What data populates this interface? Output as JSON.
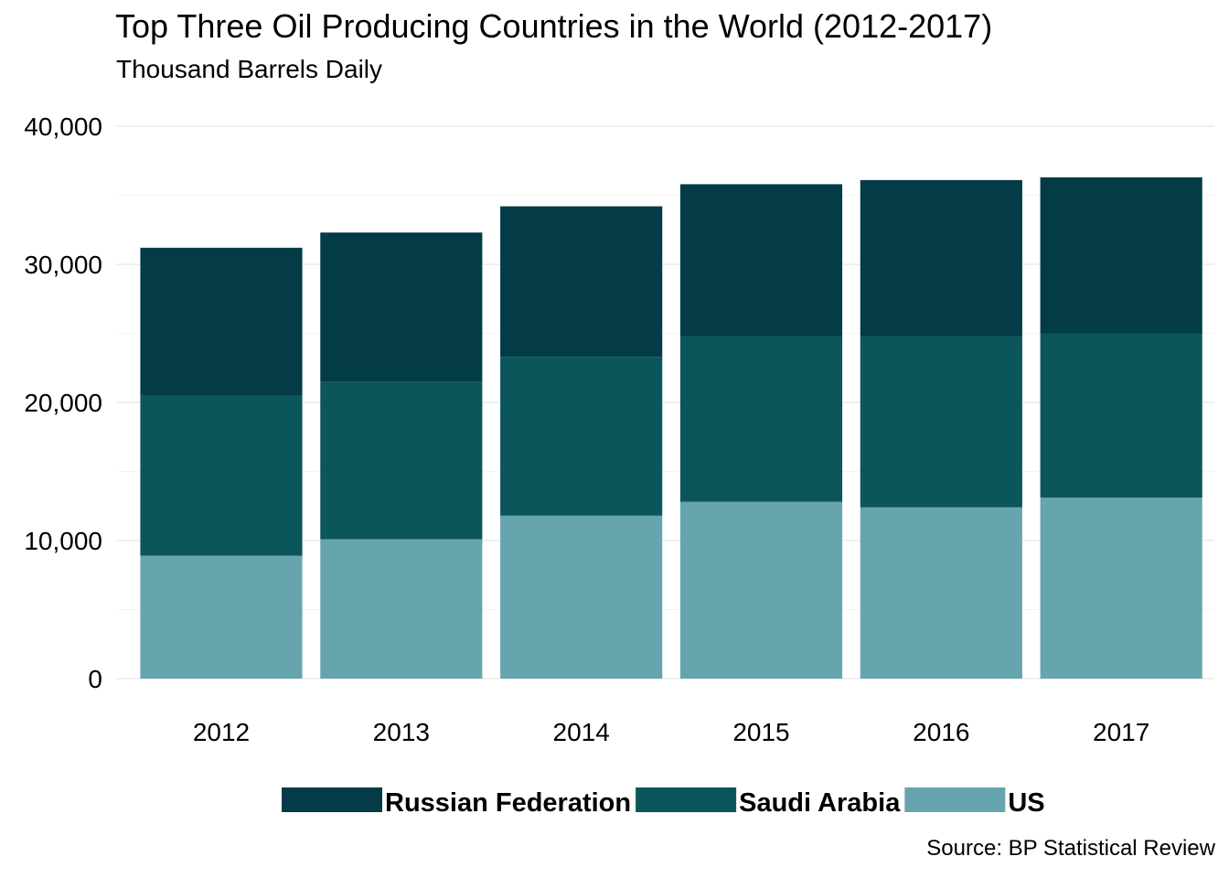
{
  "chart_data": {
    "type": "bar",
    "stacked": true,
    "title": "Top Three Oil Producing Countries in the World (2012-2017)",
    "subtitle": "Thousand Barrels Daily",
    "caption": "Source: BP Statistical Review",
    "xlabel": "",
    "ylabel": "",
    "categories": [
      "2012",
      "2013",
      "2014",
      "2015",
      "2016",
      "2017"
    ],
    "series": [
      {
        "name": "US",
        "color": "#67a5ae",
        "values": [
          8900,
          10100,
          11800,
          12800,
          12400,
          13100
        ]
      },
      {
        "name": "Saudi Arabia",
        "color": "#0b565b",
        "values": [
          11600,
          11400,
          11500,
          12000,
          12400,
          11900
        ]
      },
      {
        "name": "Russian Federation",
        "color": "#033c47",
        "values": [
          10700,
          10800,
          10900,
          11000,
          11300,
          11300
        ]
      }
    ],
    "ylim": [
      0,
      40000
    ],
    "yticks": [
      0,
      10000,
      20000,
      30000,
      40000
    ],
    "ytick_labels": [
      "0",
      "10,000",
      "20,000",
      "30,000",
      "40,000"
    ],
    "grid": true,
    "legend_position": "bottom",
    "legend_order": [
      "Russian Federation",
      "Saudi Arabia",
      "US"
    ]
  }
}
